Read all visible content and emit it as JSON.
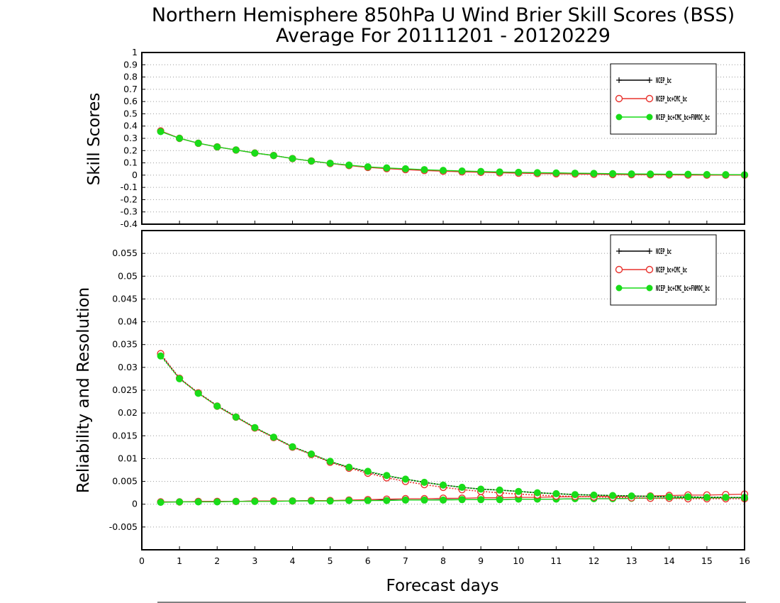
{
  "title_line1": "Northern Hemisphere 850hPa U Wind Brier Skill Scores (BSS)",
  "title_line2": "Average For 20111201 - 20120229",
  "colors": {
    "series1": "#000000",
    "series2": "#e8322d",
    "series3": "#19dc19"
  },
  "chart_data": [
    {
      "type": "line",
      "ylabel": "Skill Scores",
      "xlabel": "",
      "xlim": [
        0,
        16
      ],
      "ylim": [
        -0.4,
        1
      ],
      "grid": true,
      "legend_position": "top-right",
      "x_ticks": [
        "0",
        "1",
        "2",
        "3",
        "4",
        "5",
        "6",
        "7",
        "8",
        "9",
        "10",
        "11",
        "12",
        "13",
        "14",
        "15",
        "16"
      ],
      "y_ticks": [
        "1",
        "0.9",
        "0.8",
        "0.7",
        "0.6",
        "0.5",
        "0.4",
        "0.3",
        "0.2",
        "0.1",
        "0",
        "-0.1",
        "-0.2",
        "-0.3",
        "-0.4"
      ],
      "x": [
        0.5,
        1,
        1.5,
        2,
        2.5,
        3,
        3.5,
        4,
        4.5,
        5,
        5.5,
        6,
        6.5,
        7,
        7.5,
        8,
        8.5,
        9,
        9.5,
        10,
        10.5,
        11,
        11.5,
        12,
        12.5,
        13,
        13.5,
        14,
        14.5,
        15,
        15.5,
        16
      ],
      "series": [
        {
          "marker": "plus",
          "line": "solid",
          "color": "#000000",
          "values": [
            0.36,
            0.3,
            0.26,
            0.23,
            0.205,
            0.18,
            0.16,
            0.135,
            0.115,
            0.095,
            0.08,
            0.065,
            0.055,
            0.048,
            0.042,
            0.036,
            0.032,
            0.028,
            0.025,
            0.022,
            0.019,
            0.017,
            0.015,
            0.013,
            0.011,
            0.009,
            0.007,
            0.006,
            0.005,
            0.004,
            0.003,
            0.002
          ]
        },
        {
          "marker": "open-circle",
          "line": "solid",
          "color": "#e8322d",
          "values": [
            0.36,
            0.3,
            0.26,
            0.23,
            0.205,
            0.18,
            0.16,
            0.135,
            0.115,
            0.095,
            0.078,
            0.063,
            0.053,
            0.045,
            0.038,
            0.032,
            0.027,
            0.023,
            0.019,
            0.016,
            0.013,
            0.011,
            0.009,
            0.007,
            0.005,
            0.004,
            0.003,
            0.002,
            0.001,
            0.0,
            0.0,
            0.0
          ]
        },
        {
          "marker": "filled-circle",
          "line": "solid",
          "color": "#19dc19",
          "values": [
            0.355,
            0.3,
            0.26,
            0.23,
            0.205,
            0.18,
            0.16,
            0.135,
            0.115,
            0.097,
            0.082,
            0.068,
            0.059,
            0.052,
            0.045,
            0.039,
            0.034,
            0.03,
            0.026,
            0.023,
            0.02,
            0.018,
            0.016,
            0.014,
            0.012,
            0.01,
            0.009,
            0.008,
            0.007,
            0.005,
            0.004,
            0.003
          ]
        }
      ]
    },
    {
      "type": "line",
      "ylabel": "Reliability and Resolution",
      "xlabel": "Forecast days",
      "xlim": [
        0,
        16
      ],
      "ylim": [
        -0.01,
        0.06
      ],
      "grid": true,
      "legend_position": "top-right",
      "x_ticks": [
        "0",
        "1",
        "2",
        "3",
        "4",
        "5",
        "6",
        "7",
        "8",
        "9",
        "10",
        "11",
        "12",
        "13",
        "14",
        "15",
        "16"
      ],
      "y_ticks": [
        "0.055",
        "0.05",
        "0.045",
        "0.04",
        "0.035",
        "0.03",
        "0.025",
        "0.02",
        "0.015",
        "0.01",
        "0.005",
        "0",
        "-0.005"
      ],
      "x": [
        0.5,
        1,
        1.5,
        2,
        2.5,
        3,
        3.5,
        4,
        4.5,
        5,
        5.5,
        6,
        6.5,
        7,
        7.5,
        8,
        8.5,
        9,
        9.5,
        10,
        10.5,
        11,
        11.5,
        12,
        12.5,
        13,
        13.5,
        14,
        14.5,
        15,
        15.5,
        16
      ],
      "series": [
        {
          "marker": "plus",
          "line": "solid",
          "color": "#000000",
          "kind": "reliability",
          "values": [
            0.0005,
            0.0005,
            0.0006,
            0.0006,
            0.0006,
            0.0007,
            0.0007,
            0.0007,
            0.0008,
            0.0008,
            0.0008,
            0.0008,
            0.0009,
            0.0009,
            0.0009,
            0.001,
            0.001,
            0.001,
            0.001,
            0.0011,
            0.0011,
            0.0011,
            0.0012,
            0.0012,
            0.0012,
            0.0013,
            0.0013,
            0.0013,
            0.0014,
            0.0014,
            0.0014,
            0.0015
          ]
        },
        {
          "marker": "open-circle",
          "line": "solid",
          "color": "#e8322d",
          "kind": "reliability",
          "values": [
            0.0005,
            0.0005,
            0.0006,
            0.0006,
            0.0006,
            0.0007,
            0.0007,
            0.0007,
            0.0008,
            0.0008,
            0.0009,
            0.001,
            0.0011,
            0.0012,
            0.0012,
            0.0013,
            0.0013,
            0.0014,
            0.0014,
            0.0015,
            0.0015,
            0.0016,
            0.0016,
            0.0017,
            0.0017,
            0.0017,
            0.0018,
            0.0019,
            0.002,
            0.002,
            0.0021,
            0.0022
          ]
        },
        {
          "marker": "filled-circle",
          "line": "solid",
          "color": "#19dc19",
          "kind": "reliability",
          "values": [
            0.0004,
            0.0005,
            0.0005,
            0.0005,
            0.0006,
            0.0006,
            0.0006,
            0.0007,
            0.0007,
            0.0007,
            0.0008,
            0.0008,
            0.0008,
            0.0009,
            0.0009,
            0.0009,
            0.001,
            0.001,
            0.001,
            0.0011,
            0.0011,
            0.0011,
            0.0012,
            0.0012,
            0.0012,
            0.0013,
            0.0013,
            0.0013,
            0.0014,
            0.0014,
            0.0014,
            0.0015
          ]
        },
        {
          "marker": "plus",
          "line": "dotted",
          "color": "#000000",
          "kind": "resolution",
          "values": [
            0.0328,
            0.0276,
            0.0244,
            0.0216,
            0.0192,
            0.0168,
            0.0147,
            0.0126,
            0.011,
            0.0093,
            0.0081,
            0.0071,
            0.0062,
            0.0055,
            0.0048,
            0.0042,
            0.0037,
            0.0033,
            0.0031,
            0.0028,
            0.0025,
            0.0023,
            0.0021,
            0.002,
            0.0019,
            0.0018,
            0.0017,
            0.0016,
            0.0016,
            0.0015,
            0.0015,
            0.0014
          ]
        },
        {
          "marker": "open-circle",
          "line": "dotted",
          "color": "#e8322d",
          "kind": "resolution",
          "values": [
            0.033,
            0.0276,
            0.0244,
            0.0215,
            0.0191,
            0.0167,
            0.0146,
            0.0125,
            0.0109,
            0.0092,
            0.0079,
            0.0068,
            0.0058,
            0.005,
            0.0043,
            0.0037,
            0.0032,
            0.0028,
            0.0025,
            0.0022,
            0.002,
            0.0018,
            0.0017,
            0.0016,
            0.0015,
            0.0014,
            0.0013,
            0.0013,
            0.0012,
            0.0012,
            0.0012,
            0.0012
          ]
        },
        {
          "marker": "filled-circle",
          "line": "dotted",
          "color": "#19dc19",
          "kind": "resolution",
          "values": [
            0.0325,
            0.0275,
            0.0243,
            0.0215,
            0.0191,
            0.0168,
            0.0147,
            0.0126,
            0.011,
            0.0094,
            0.0081,
            0.0072,
            0.0063,
            0.0055,
            0.0048,
            0.0042,
            0.0037,
            0.0033,
            0.0031,
            0.0028,
            0.0025,
            0.0023,
            0.0021,
            0.002,
            0.0019,
            0.0018,
            0.0017,
            0.0016,
            0.0016,
            0.0015,
            0.0015,
            0.0014
          ]
        }
      ]
    }
  ]
}
